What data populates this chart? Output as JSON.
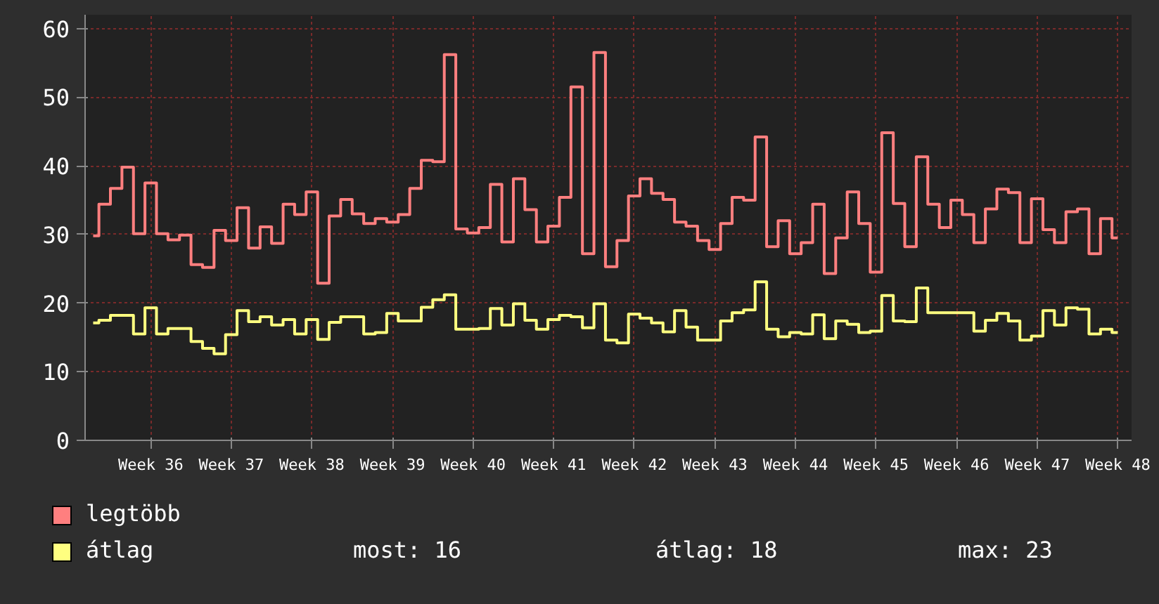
{
  "chart_data": {
    "type": "step",
    "categories": [
      null,
      null,
      null,
      null,
      null,
      "Week 36",
      null,
      null,
      null,
      null,
      null,
      null,
      "Week 37",
      null,
      null,
      null,
      null,
      null,
      null,
      "Week 38",
      null,
      null,
      null,
      null,
      null,
      null,
      "Week 39",
      null,
      null,
      null,
      null,
      null,
      null,
      "Week 40",
      null,
      null,
      null,
      null,
      null,
      null,
      "Week 41",
      null,
      null,
      null,
      null,
      null,
      null,
      "Week 42",
      null,
      null,
      null,
      null,
      null,
      null,
      "Week 43",
      null,
      null,
      null,
      null,
      null,
      null,
      "Week 44",
      null,
      null,
      null,
      null,
      null,
      null,
      "Week 45",
      null,
      null,
      null,
      null,
      null,
      null,
      "Week 46",
      null,
      null,
      null,
      null,
      null,
      null,
      "Week 47",
      null,
      null,
      null,
      null,
      null,
      null,
      "Week 48"
    ],
    "series": [
      {
        "name": "legtöbb",
        "color": "#ff7f7f",
        "values": [
          29.8,
          34.4,
          36.7,
          39.8,
          30.1,
          37.5,
          30.1,
          29.2,
          29.9,
          25.6,
          25.2,
          30.6,
          29.1,
          33.9,
          28.0,
          31.1,
          28.7,
          34.4,
          32.9,
          36.2,
          22.9,
          32.7,
          35.1,
          33.0,
          31.6,
          32.3,
          31.8,
          32.9,
          36.7,
          40.8,
          40.6,
          56.2,
          30.8,
          30.2,
          31.0,
          37.3,
          28.9,
          38.1,
          33.6,
          28.9,
          31.2,
          35.4,
          51.5,
          27.2,
          56.5,
          25.3,
          29.1,
          35.6,
          38.1,
          36.0,
          35.1,
          31.8,
          31.2,
          29.1,
          27.8,
          31.6,
          35.4,
          35.0,
          44.2,
          28.2,
          32.0,
          27.2,
          28.8,
          34.4,
          24.3,
          29.5,
          36.2,
          31.6,
          24.5,
          44.8,
          34.5,
          28.2,
          41.3,
          34.4,
          31.0,
          35.0,
          32.9,
          28.8,
          33.7,
          36.6,
          36.1,
          28.8,
          35.2,
          30.7,
          28.8,
          33.3,
          33.7,
          27.2,
          32.3,
          29.5
        ]
      },
      {
        "name": "átlag",
        "color": "#ffff80",
        "values": [
          17.1,
          17.5,
          18.2,
          18.2,
          15.5,
          19.3,
          15.5,
          16.3,
          16.3,
          14.4,
          13.4,
          12.6,
          15.4,
          18.9,
          17.3,
          18.0,
          16.8,
          17.6,
          15.5,
          17.6,
          14.7,
          17.2,
          18.0,
          18.0,
          15.5,
          15.7,
          18.5,
          17.4,
          17.4,
          19.4,
          20.5,
          21.2,
          16.2,
          16.2,
          16.3,
          19.2,
          16.8,
          19.9,
          17.5,
          16.2,
          17.6,
          18.2,
          18.0,
          16.4,
          19.9,
          14.6,
          14.2,
          18.4,
          17.8,
          17.1,
          15.8,
          18.9,
          16.5,
          14.6,
          14.6,
          17.4,
          18.6,
          19.0,
          23.1,
          16.2,
          15.1,
          15.7,
          15.5,
          18.3,
          14.8,
          17.4,
          16.9,
          15.7,
          15.9,
          21.1,
          17.4,
          17.3,
          22.2,
          18.6,
          18.6,
          18.6,
          18.6,
          15.9,
          17.5,
          18.5,
          17.4,
          14.6,
          15.2,
          18.9,
          16.8,
          19.3,
          19.1,
          15.5,
          16.2,
          15.7
        ]
      }
    ],
    "ylim": [
      0,
      62
    ],
    "yticks": [
      0,
      10,
      20,
      30,
      40,
      50,
      60
    ],
    "grid": true,
    "legend": "bottom",
    "annotations": [
      "most: 16",
      "átlag: 18",
      "max: 23"
    ]
  }
}
